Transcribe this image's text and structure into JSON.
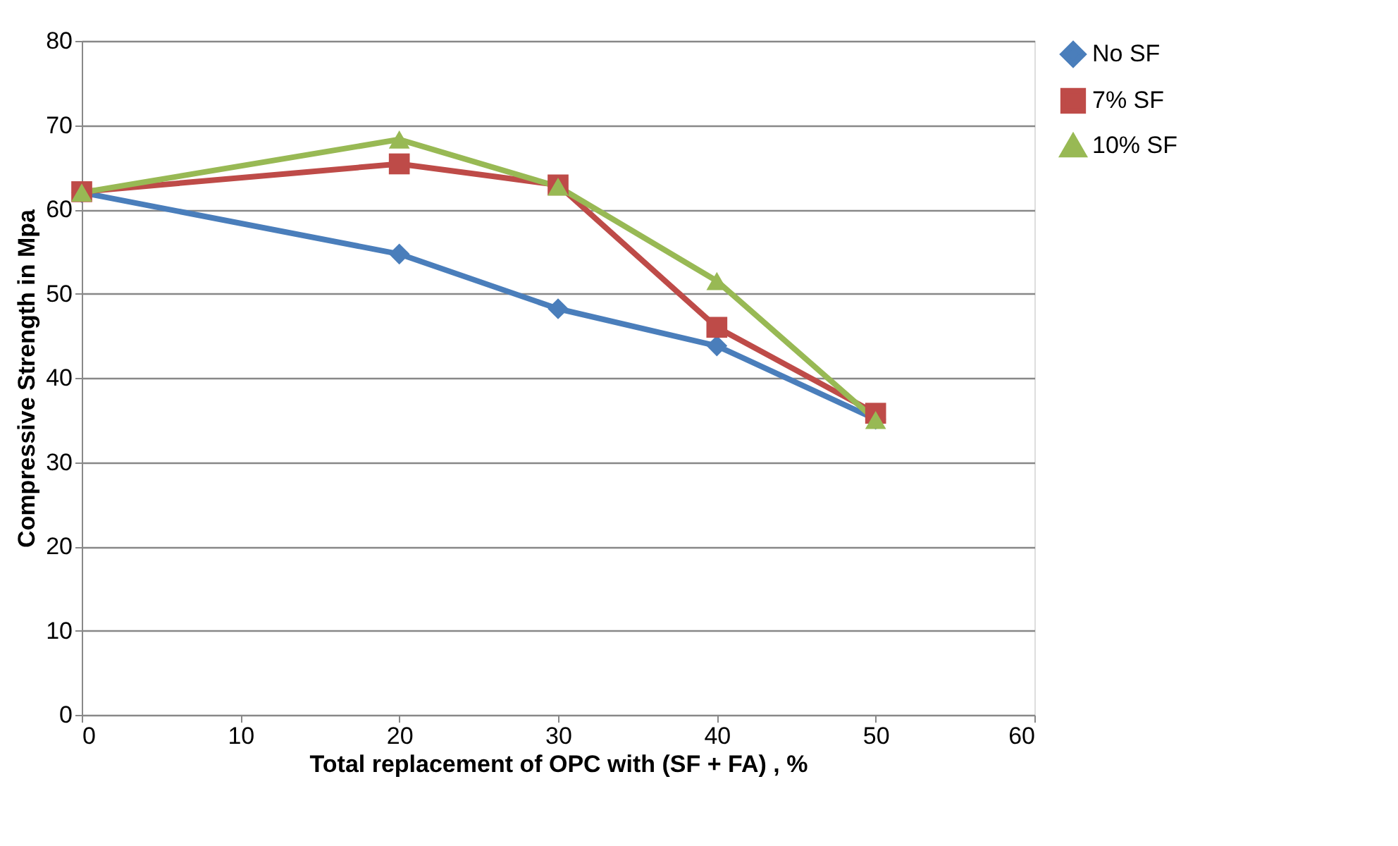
{
  "chart_data": {
    "type": "line",
    "xlabel": "Total replacement of OPC with (SF + FA) , %",
    "ylabel": "Compressive Strength in Mpa",
    "x": [
      0,
      20,
      30,
      40,
      50
    ],
    "xlim": [
      0,
      60
    ],
    "xticks": [
      0,
      10,
      20,
      30,
      40,
      50,
      60
    ],
    "ylim": [
      0,
      80
    ],
    "yticks": [
      0,
      10,
      20,
      30,
      40,
      50,
      60,
      70,
      80
    ],
    "grid": "y",
    "legend": "right",
    "line_style": "solid",
    "series": [
      {
        "name": "No SF",
        "color": "#4a7ebb",
        "marker": "diamond",
        "values": [
          62,
          54.7,
          48.2,
          43.8,
          35.1
        ]
      },
      {
        "name": "7% SF",
        "color": "#be4b48",
        "marker": "square",
        "values": [
          62.1,
          65.4,
          62.9,
          46,
          35.8
        ]
      },
      {
        "name": "10% SF",
        "color": "#98b954",
        "marker": "triangle",
        "values": [
          62,
          68.3,
          62.7,
          51.5,
          35
        ]
      }
    ]
  }
}
